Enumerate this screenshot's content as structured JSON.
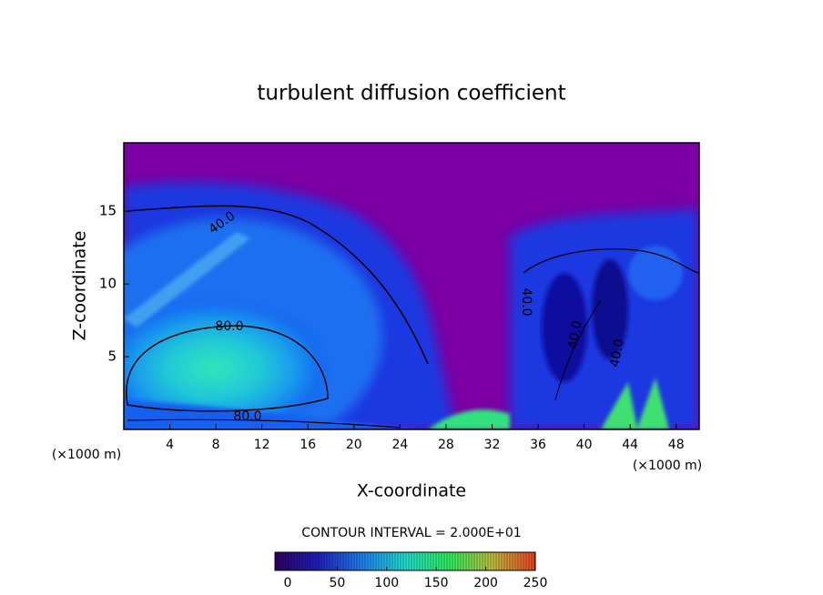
{
  "chart_data": {
    "type": "contour",
    "title": "turbulent diffusion coefficient",
    "x_label": "X-coordinate",
    "y_label": "Z-coordinate",
    "x_unit": "(×1000 m)",
    "x_unit_right": "(×1000 m)",
    "xlim": [
      0,
      50
    ],
    "xticks": [
      4,
      8,
      12,
      16,
      20,
      24,
      28,
      32,
      36,
      40,
      44,
      48
    ],
    "ylim": [
      0,
      19.7
    ],
    "yticks": [
      5,
      10,
      15
    ],
    "contour_interval_label": "CONTOUR INTERVAL = 2.000E+01",
    "contour_labels": [
      "40.0",
      "80.0",
      "80.0",
      "40.0",
      "40.0",
      "40.0"
    ],
    "colorbar": {
      "clim": [
        0,
        250
      ],
      "ticks": [
        0,
        50,
        100,
        150,
        200,
        250
      ],
      "colors": [
        "#300060",
        "#2020c0",
        "#2080f0",
        "#20e0d0",
        "#30f060",
        "#c0c040",
        "#f04020"
      ]
    }
  }
}
